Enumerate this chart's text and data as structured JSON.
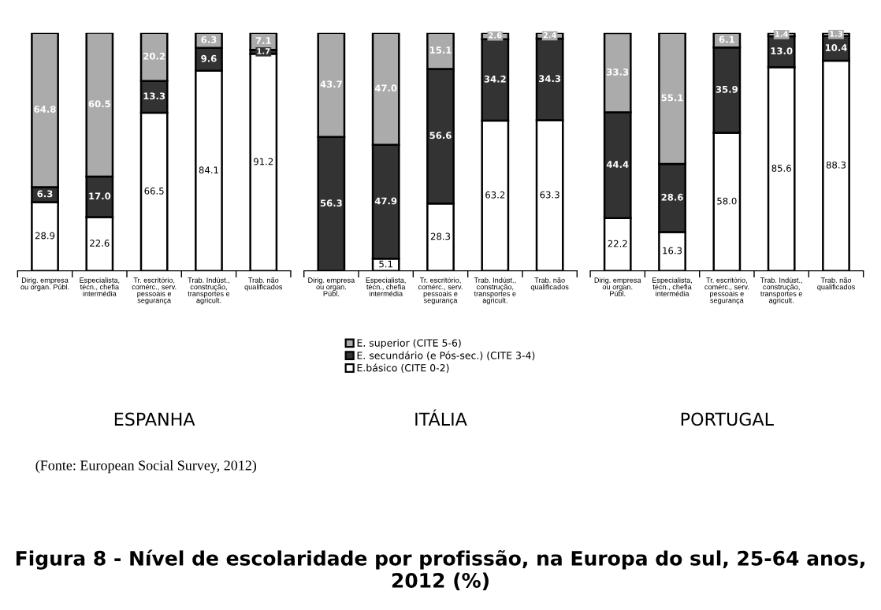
{
  "chart_data": [
    {
      "type": "bar",
      "stacked": true,
      "xlabel": "ESPANHA",
      "title": "Figura 8 - Nível de escolaridade por profissão, na Europa do sul, 25-64 anos, 2012 (%)",
      "annotations": [
        "(Fonte: European Social Survey, 2012)"
      ],
      "ylim": [
        0,
        100
      ],
      "tick_labels": "x",
      "legend": false,
      "categories": [
        "Dirig. empresa\nou organ. Públ.",
        "Especialista,\ntécn., chefia\nintermédia",
        "Tr. escritório,\ncomérc., serv.\npessoais e\nsegurança",
        "Trab. Indúst.,\nconstrução,\ntransportes e\nagricult.",
        "Trab. não\nqualificados"
      ],
      "series": [
        {
          "color": "#ffffff",
          "values": [
            28.9,
            22.6,
            66.5,
            84.1,
            91.2
          ],
          "value_labels": [
            "28.9",
            "22.6",
            "66.5",
            "84.1",
            "91.2"
          ]
        },
        {
          "color": "#333333",
          "values": [
            6.3,
            17.0,
            13.3,
            9.6,
            1.7
          ],
          "value_labels": [
            "6.3",
            "17.0",
            "13.3",
            "9.6",
            "1.7"
          ]
        },
        {
          "color": "#ababab",
          "values": [
            64.8,
            60.5,
            20.2,
            6.3,
            7.1
          ],
          "value_labels": [
            "64.8",
            "60.5",
            "20.2",
            "6.3",
            "7.1"
          ]
        }
      ]
    },
    {
      "type": "bar",
      "stacked": true,
      "xlabel": "ITÁLIA",
      "ylim": [
        0,
        100
      ],
      "tick_labels": "x",
      "legend": "bottom",
      "categories": [
        "Dirig. empresa\nou organ.\nPúbl.",
        "Especialista,\ntécn., chefia\nintermédia",
        "Tr. escritório,\ncomérc., serv.\npessoais e\nsegurança",
        "Trab. Indúst.,\nconstrução,\ntransportes e\nagricult.",
        "Trab. não\nqualificados"
      ],
      "series": [
        {
          "name": "E.básico (CITE 0-2)",
          "color": "#ffffff",
          "values": [
            0,
            5.1,
            28.3,
            63.2,
            63.3
          ],
          "value_labels": [
            null,
            "5.1",
            "28.3",
            "63.2",
            "63.3"
          ]
        },
        {
          "name": "E. secundário (e Pós-sec.) (CITE 3-4)",
          "color": "#333333",
          "values": [
            56.3,
            47.9,
            56.6,
            34.2,
            34.3
          ],
          "value_labels": [
            "56.3",
            "47.9",
            "56.6",
            "34.2",
            "34.3"
          ]
        },
        {
          "name": "E. superior (CITE 5-6)",
          "color": "#ababab",
          "values": [
            43.7,
            47.0,
            15.1,
            2.6,
            2.4
          ],
          "value_labels": [
            "43.7",
            "47.0",
            "15.1",
            "2.6",
            "2.4"
          ]
        }
      ]
    },
    {
      "type": "bar",
      "stacked": true,
      "xlabel": "PORTUGAL",
      "ylim": [
        0,
        100
      ],
      "tick_labels": "x",
      "legend": false,
      "categories": [
        "Dirig. empresa\nou organ.\nPúbl.",
        "Especialista,\ntécn., chefia\nintermédia",
        "Tr. escritório,\ncomérc., serv.\npessoais e\nsegurança",
        "Trab. Indúst.,\nconstrução,\ntransportes e\nagricult.",
        "Trab. não\nqualificados"
      ],
      "series": [
        {
          "color": "#ffffff",
          "values": [
            22.2,
            16.3,
            58.0,
            85.6,
            88.3
          ],
          "value_labels": [
            "22.2",
            "16.3",
            "58.0",
            "85.6",
            "88.3"
          ]
        },
        {
          "color": "#333333",
          "values": [
            44.4,
            28.6,
            35.9,
            13.0,
            10.4
          ],
          "value_labels": [
            "44.4",
            "28.6",
            "35.9",
            "13.0",
            "10.4"
          ]
        },
        {
          "color": "#ababab",
          "values": [
            33.3,
            55.1,
            6.1,
            1.4,
            1.3
          ],
          "value_labels": [
            "33.3",
            "55.1",
            "6.1",
            "1.4",
            "1.3"
          ]
        }
      ]
    }
  ]
}
